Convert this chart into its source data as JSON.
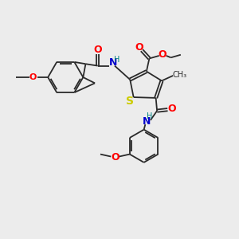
{
  "background_color": "#ececec",
  "bond_color": "#2a2a2a",
  "atom_colors": {
    "O": "#ff0000",
    "N": "#0000cd",
    "S": "#cccc00",
    "H": "#008080",
    "C": "#2a2a2a"
  },
  "lw": 1.3,
  "hex_r": 0.55,
  "thio_scale": 0.55
}
